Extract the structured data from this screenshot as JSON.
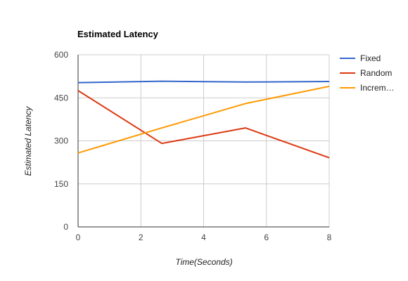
{
  "chart_data": {
    "type": "line",
    "title": "Estimated Latency",
    "xlabel": "Time(Seconds)",
    "ylabel": "Estimated Latency",
    "xlim": [
      0,
      8
    ],
    "ylim": [
      0,
      600
    ],
    "x_ticks": [
      "0",
      "2",
      "4",
      "6",
      "8"
    ],
    "y_ticks": [
      "0",
      "150",
      "300",
      "450",
      "600"
    ],
    "grid": true,
    "legend_position": "right",
    "series": [
      {
        "name": "Fixed",
        "color": "#3366cc",
        "x": [
          0,
          2.67,
          5.33,
          8
        ],
        "y": [
          503,
          508,
          505,
          507
        ]
      },
      {
        "name": "Random",
        "color": "#dc3912",
        "x": [
          0,
          2.67,
          5.33,
          8
        ],
        "y": [
          475,
          291,
          345,
          241
        ]
      },
      {
        "name": "Increm…",
        "color": "#ff9900",
        "x": [
          0,
          2.67,
          5.33,
          8
        ],
        "y": [
          258,
          345,
          430,
          490
        ]
      }
    ]
  }
}
